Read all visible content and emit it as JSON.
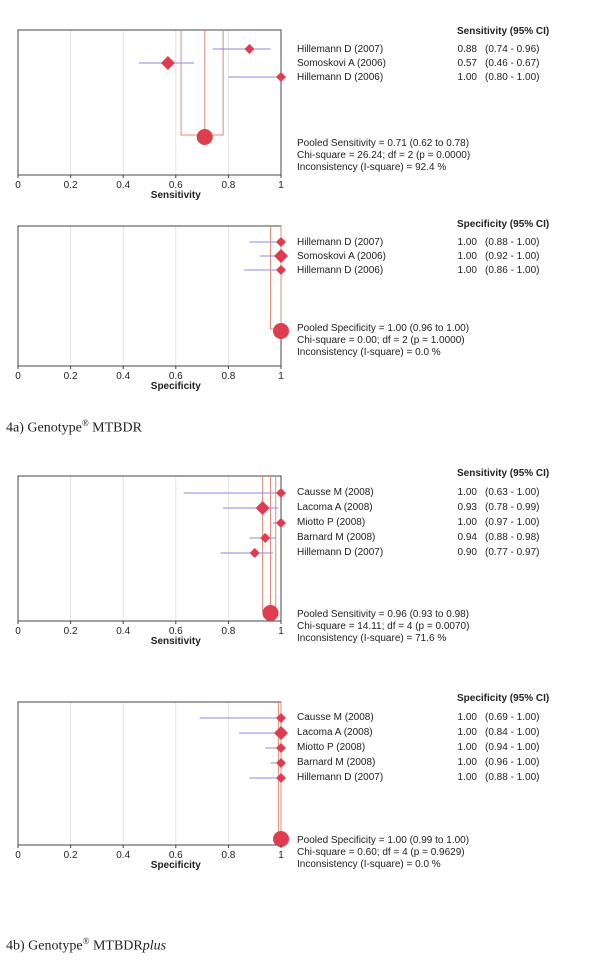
{
  "colors": {
    "marker": "#e03c4f",
    "ci_line": "#8a8ae0",
    "pooled_line": "#e38a7a",
    "frame": "#444444"
  },
  "chart_data": [
    {
      "type": "forest",
      "panel": "4a",
      "xlabel": "Sensitivity",
      "xlim": [
        0,
        1
      ],
      "ticks": [
        "0",
        "0.2",
        "0.4",
        "0.6",
        "0.8",
        "1"
      ],
      "header": "Sensitivity (95% CI)",
      "studies": [
        {
          "name": "Hillemann D (2007)",
          "est_label": "0.88",
          "ci_label": "(0.74 - 0.96)",
          "est": 0.88,
          "lo": 0.74,
          "hi": 0.96
        },
        {
          "name": "Somoskovi A (2006)",
          "est_label": "0.57",
          "ci_label": "(0.46 - 0.67)",
          "est": 0.57,
          "lo": 0.46,
          "hi": 0.67
        },
        {
          "name": "Hillemann D (2006)",
          "est_label": "1.00",
          "ci_label": "(0.80 - 1.00)",
          "est": 1.0,
          "lo": 0.8,
          "hi": 1.0
        }
      ],
      "pooled": {
        "est": 0.71,
        "lo": 0.62,
        "hi": 0.78,
        "lines": [
          "Pooled Sensitivity = 0.71 (0.62 to 0.78)",
          "Chi-square = 26.24; df = 2 (p = 0.0000)",
          "Inconsistency (I-square) = 92.4 %"
        ]
      }
    },
    {
      "type": "forest",
      "panel": "4a",
      "xlabel": "Specificity",
      "xlim": [
        0,
        1
      ],
      "ticks": [
        "0",
        "0.2",
        "0.4",
        "0.6",
        "0.8",
        "1"
      ],
      "header": "Specificity (95% CI)",
      "studies": [
        {
          "name": "Hillemann D (2007)",
          "est_label": "1.00",
          "ci_label": "(0.88 - 1.00)",
          "est": 1.0,
          "lo": 0.88,
          "hi": 1.0
        },
        {
          "name": "Somoskovi A (2006)",
          "est_label": "1.00",
          "ci_label": "(0.92 - 1.00)",
          "est": 1.0,
          "lo": 0.92,
          "hi": 1.0
        },
        {
          "name": "Hillemann D (2006)",
          "est_label": "1.00",
          "ci_label": "(0.86 - 1.00)",
          "est": 1.0,
          "lo": 0.86,
          "hi": 1.0
        }
      ],
      "pooled": {
        "est": 1.0,
        "lo": 0.96,
        "hi": 1.0,
        "lines": [
          "Pooled Specificity = 1.00 (0.96 to 1.00)",
          "Chi-square = 0.00; df = 2 (p = 1.0000)",
          "Inconsistency (I-square) = 0.0 %"
        ]
      }
    },
    {
      "type": "forest",
      "panel": "4b",
      "xlabel": "Sensitivity",
      "xlim": [
        0,
        1
      ],
      "ticks": [
        "0",
        "0.2",
        "0.4",
        "0.6",
        "0.8",
        "1"
      ],
      "header": "Sensitivity (95% CI)",
      "studies": [
        {
          "name": "Causse M (2008)",
          "est_label": "1.00",
          "ci_label": "(0.63 - 1.00)",
          "est": 1.0,
          "lo": 0.63,
          "hi": 1.0
        },
        {
          "name": "Lacoma A (2008)",
          "est_label": "0.93",
          "ci_label": "(0.78 - 0.99)",
          "est": 0.93,
          "lo": 0.78,
          "hi": 0.99
        },
        {
          "name": "Miotto P (2008)",
          "est_label": "1.00",
          "ci_label": "(0.97 - 1.00)",
          "est": 1.0,
          "lo": 0.97,
          "hi": 1.0
        },
        {
          "name": "Barnard M (2008)",
          "est_label": "0.94",
          "ci_label": "(0.88 - 0.98)",
          "est": 0.94,
          "lo": 0.88,
          "hi": 0.98
        },
        {
          "name": "Hillemann D (2007)",
          "est_label": "0.90",
          "ci_label": "(0.77 - 0.97)",
          "est": 0.9,
          "lo": 0.77,
          "hi": 0.97
        }
      ],
      "pooled": {
        "est": 0.96,
        "lo": 0.93,
        "hi": 0.98,
        "lines": [
          "Pooled Sensitivity = 0.96 (0.93 to 0.98)",
          "Chi-square = 14.11; df = 4 (p = 0.0070)",
          "Inconsistency (I-square) = 71.6 %"
        ]
      }
    },
    {
      "type": "forest",
      "panel": "4b",
      "xlabel": "Specificity",
      "xlim": [
        0,
        1
      ],
      "ticks": [
        "0",
        "0.2",
        "0.4",
        "0.6",
        "0.8",
        "1"
      ],
      "header": "Specificity (95% CI)",
      "studies": [
        {
          "name": "Causse M (2008)",
          "est_label": "1.00",
          "ci_label": "(0.69 - 1.00)",
          "est": 1.0,
          "lo": 0.69,
          "hi": 1.0
        },
        {
          "name": "Lacoma A (2008)",
          "est_label": "1.00",
          "ci_label": "(0.84 - 1.00)",
          "est": 1.0,
          "lo": 0.84,
          "hi": 1.0
        },
        {
          "name": "Miotto P (2008)",
          "est_label": "1.00",
          "ci_label": "(0.94 - 1.00)",
          "est": 1.0,
          "lo": 0.94,
          "hi": 1.0
        },
        {
          "name": "Barnard M (2008)",
          "est_label": "1.00",
          "ci_label": "(0.96 - 1.00)",
          "est": 1.0,
          "lo": 0.96,
          "hi": 1.0
        },
        {
          "name": "Hillemann D (2007)",
          "est_label": "1.00",
          "ci_label": "(0.88 - 1.00)",
          "est": 1.0,
          "lo": 0.88,
          "hi": 1.0
        }
      ],
      "pooled": {
        "est": 1.0,
        "lo": 0.99,
        "hi": 1.0,
        "lines": [
          "Pooled Specificity = 1.00 (0.99 to 1.00)",
          "Chi-square = 0.60; df = 4 (p = 0.9629)",
          "Inconsistency (I-square) = 0.0 %"
        ]
      }
    }
  ],
  "captions": [
    {
      "prefix": "4a) Genotype",
      "sup": "®",
      "name": "MTBDR",
      "italic": ""
    },
    {
      "prefix": "4b) Genotype",
      "sup": "®",
      "name": "MTBDR",
      "italic": "plus"
    }
  ]
}
